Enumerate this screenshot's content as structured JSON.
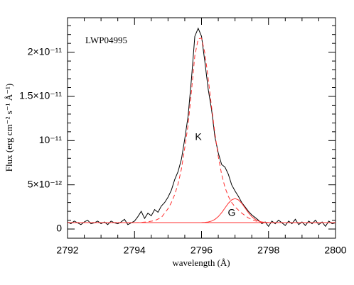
{
  "chart_data": {
    "type": "line",
    "annotations": [
      "LWP04995",
      "K",
      "G"
    ],
    "xlabel": "wavelength (Å)",
    "ylabel": "Flux (erg cm⁻² s⁻¹ Å⁻¹)",
    "xlim": [
      2792,
      2800
    ],
    "xticks": [
      2792,
      2794,
      2796,
      2798,
      2800
    ],
    "xminorticks": [
      2792.5,
      2793,
      2793.5,
      2794.5,
      2795,
      2795.5,
      2796.5,
      2797,
      2797.5,
      2798.5,
      2799,
      2799.5
    ],
    "ylim": [
      -1.04e-12,
      2.39e-11
    ],
    "yticks": [
      0,
      {
        "value": 5e-12,
        "label": "5×10⁻¹²"
      },
      {
        "value": 1e-11,
        "label": "10⁻¹¹"
      },
      {
        "value": 1.5e-11,
        "label": "1.5×10⁻¹¹"
      },
      {
        "value": 2e-11,
        "label": "2×10⁻¹¹"
      }
    ],
    "yminorticks": [
      1e-12,
      2e-12,
      3e-12,
      4e-12,
      6e-12,
      7e-12,
      8e-12,
      9e-12,
      1.1e-11,
      1.2e-11,
      1.3e-11,
      1.4e-11,
      1.6e-11,
      1.7e-11,
      1.8e-11,
      1.9e-11,
      2.1e-11,
      2.2e-11,
      2.3e-11
    ],
    "series": [
      {
        "color": "#000000",
        "dashed": false,
        "x": [
          2792.0,
          2792.1,
          2792.2,
          2792.3,
          2792.4,
          2792.5,
          2792.6,
          2792.7,
          2792.8,
          2792.9,
          2793.0,
          2793.1,
          2793.2,
          2793.3,
          2793.4,
          2793.5,
          2793.6,
          2793.7,
          2793.8,
          2793.9,
          2794.0,
          2794.1,
          2794.2,
          2794.3,
          2794.4,
          2794.5,
          2794.6,
          2794.7,
          2794.8,
          2794.9,
          2795.0,
          2795.1,
          2795.2,
          2795.3,
          2795.4,
          2795.5,
          2795.6,
          2795.7,
          2795.8,
          2795.9,
          2796.0,
          2796.1,
          2796.2,
          2796.3,
          2796.4,
          2796.5,
          2796.6,
          2796.7,
          2796.8,
          2796.9,
          2797.0,
          2797.1,
          2797.2,
          2797.3,
          2797.4,
          2797.5,
          2797.6,
          2797.7,
          2797.8,
          2797.9,
          2798.0,
          2798.1,
          2798.2,
          2798.3,
          2798.4,
          2798.5,
          2798.6,
          2798.7,
          2798.8,
          2798.9,
          2799.0,
          2799.1,
          2799.2,
          2799.3,
          2799.4,
          2799.5,
          2799.6,
          2799.7,
          2799.8,
          2799.9,
          2800.0
        ],
        "values": [
          8e-13,
          6e-13,
          9e-13,
          7e-13,
          5e-13,
          8e-13,
          1e-12,
          6e-13,
          7e-13,
          9e-13,
          6e-13,
          8e-13,
          5e-13,
          9e-13,
          7e-13,
          6e-13,
          8e-13,
          1.1e-12,
          5e-13,
          7e-13,
          9e-13,
          1.4e-12,
          2e-12,
          1.2e-12,
          1.8e-12,
          1.5e-12,
          2.2e-12,
          1.9e-12,
          2.6e-12,
          3e-12,
          3.6e-12,
          4.4e-12,
          5.6e-12,
          6.5e-12,
          7.9e-12,
          1.02e-11,
          1.28e-11,
          1.7e-11,
          2.18e-11,
          2.27e-11,
          2.18e-11,
          1.89e-11,
          1.58e-11,
          1.35e-11,
          1.04e-11,
          8.6e-12,
          7.3e-12,
          7e-12,
          6.2e-12,
          5e-12,
          4.3e-12,
          3.7e-12,
          3e-12,
          2.5e-12,
          2e-12,
          1.6e-12,
          1.3e-12,
          1e-12,
          6e-13,
          8e-13,
          3e-13,
          9e-13,
          6e-13,
          1e-12,
          7e-13,
          4e-13,
          9e-13,
          6e-13,
          1.1e-12,
          5e-13,
          8e-13,
          4e-13,
          9e-13,
          6e-13,
          1e-12,
          5e-13,
          8e-13,
          3e-13,
          9e-13,
          6e-13,
          7e-13
        ]
      },
      {
        "color": "#ff3030",
        "dashed": true,
        "x": [
          2794.0,
          2794.2,
          2794.4,
          2794.6,
          2794.8,
          2795.0,
          2795.1,
          2795.2,
          2795.3,
          2795.4,
          2795.5,
          2795.6,
          2795.7,
          2795.8,
          2795.9,
          2796.0,
          2796.1,
          2796.2,
          2796.3,
          2796.4,
          2796.5,
          2796.6,
          2796.7,
          2796.8,
          2796.9,
          2797.0,
          2797.2,
          2797.4,
          2797.6,
          2797.8,
          2798.0
        ],
        "values": [
          7.2e-13,
          7.5e-13,
          8.2e-13,
          9.5e-13,
          1.3e-12,
          2.3e-12,
          3e-12,
          3.9e-12,
          5.1e-12,
          6.8e-12,
          9.2e-12,
          1.18e-11,
          1.56e-11,
          1.96e-11,
          2.15e-11,
          2.16e-11,
          1.99e-11,
          1.7e-11,
          1.38e-11,
          1.08e-11,
          8.2e-12,
          6.2e-12,
          4.7e-12,
          3.7e-12,
          3e-12,
          2.5e-12,
          1.8e-12,
          1.25e-12,
          9.2e-13,
          7.8e-13,
          7.3e-13
        ]
      },
      {
        "color": "#ff3030",
        "dashed": false,
        "x": [
          2796.0,
          2796.1,
          2796.2,
          2796.3,
          2796.4,
          2796.5,
          2796.6,
          2796.7,
          2796.8,
          2796.9,
          2797.0,
          2797.1,
          2797.2,
          2797.3,
          2797.4,
          2797.5,
          2797.6,
          2797.7,
          2797.8,
          2797.9,
          2798.0
        ],
        "values": [
          7.3e-13,
          7.5e-13,
          8e-13,
          9e-13,
          1.09e-12,
          1.4e-12,
          1.84e-12,
          2.38e-12,
          2.91e-12,
          3.3e-12,
          3.45e-12,
          3.3e-12,
          2.91e-12,
          2.38e-12,
          1.84e-12,
          1.4e-12,
          1.09e-12,
          9e-13,
          8e-13,
          7.5e-13,
          7.3e-13
        ]
      },
      {
        "color": "#ff3030",
        "dashed": false,
        "x": [
          2792,
          2800
        ],
        "values": [
          7.2e-13,
          7.2e-13
        ]
      }
    ]
  }
}
